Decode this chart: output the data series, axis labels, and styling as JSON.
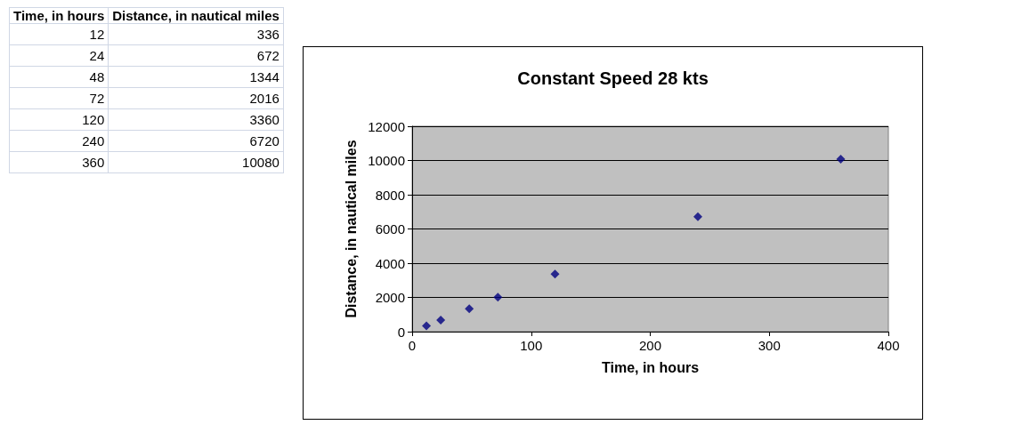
{
  "chart_data": {
    "type": "scatter",
    "title": "Constant Speed 28 kts",
    "xlabel": "Time, in hours",
    "ylabel": "Distance, in nautical miles",
    "x": [
      12,
      24,
      48,
      72,
      120,
      240,
      360
    ],
    "values": [
      336,
      672,
      1344,
      2016,
      3360,
      6720,
      10080
    ],
    "color": "#000080",
    "marker": "diamond",
    "grid": "y",
    "xlim": [
      0,
      400
    ],
    "xticks": [
      0,
      100,
      200,
      300,
      400
    ],
    "ylim": [
      0,
      12000
    ],
    "yticks": [
      0,
      2000,
      4000,
      6000,
      8000,
      10000,
      12000
    ],
    "annotations": [
      "Time, in hours",
      "Distance, in nautical miles",
      "12",
      "336",
      "24",
      "672",
      "48",
      "1344",
      "72",
      "2016",
      "120",
      "3360",
      "240",
      "6720",
      "360",
      "10080"
    ]
  }
}
